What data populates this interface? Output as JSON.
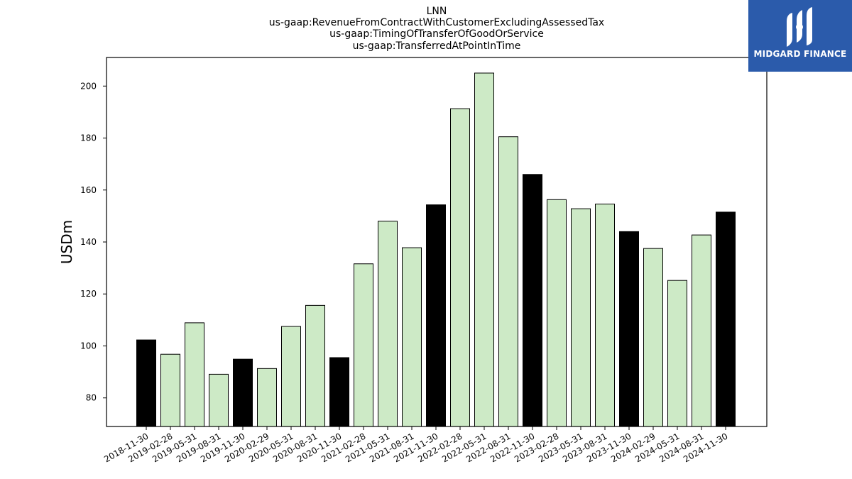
{
  "logo": {
    "text": "MIDGARD FINANCE",
    "mark": "midgard-logo-icon",
    "bg": "#2b5bab"
  },
  "chart_data": {
    "type": "bar",
    "title_lines": [
      "LNN",
      "us-gaap:RevenueFromContractWithCustomerExcludingAssessedTax",
      "us-gaap:TimingOfTransferOfGoodOrService",
      "us-gaap:TransferredAtPointInTime"
    ],
    "ylabel": "USDm",
    "xlabel": "",
    "ylim": [
      69,
      211
    ],
    "yticks": [
      80,
      100,
      120,
      140,
      160,
      180,
      200
    ],
    "categories": [
      "2018-11-30",
      "2019-02-28",
      "2019-05-31",
      "2019-08-31",
      "2019-11-30",
      "2020-02-29",
      "2020-05-31",
      "2020-08-31",
      "2020-11-30",
      "2021-02-28",
      "2021-05-31",
      "2021-08-31",
      "2021-11-30",
      "2022-02-28",
      "2022-05-31",
      "2022-08-31",
      "2022-11-30",
      "2023-02-28",
      "2023-05-31",
      "2023-08-31",
      "2023-11-30",
      "2024-02-29",
      "2024-05-31",
      "2024-08-31",
      "2024-11-30"
    ],
    "values": [
      102.3,
      96.8,
      108.9,
      89.1,
      94.9,
      91.3,
      107.5,
      115.6,
      95.5,
      131.6,
      148.0,
      137.8,
      154.3,
      191.3,
      205.0,
      180.5,
      166.0,
      156.3,
      152.8,
      154.6,
      144.0,
      137.5,
      125.2,
      142.7,
      151.5
    ],
    "annual_flags": [
      true,
      false,
      false,
      false,
      true,
      false,
      false,
      false,
      true,
      false,
      false,
      false,
      true,
      false,
      false,
      false,
      true,
      false,
      false,
      false,
      true,
      false,
      false,
      false,
      true
    ],
    "colors": {
      "annual": "#000000",
      "quarter": "#cdeac6",
      "edge": "#000000"
    },
    "grid": false,
    "legend": "none"
  }
}
